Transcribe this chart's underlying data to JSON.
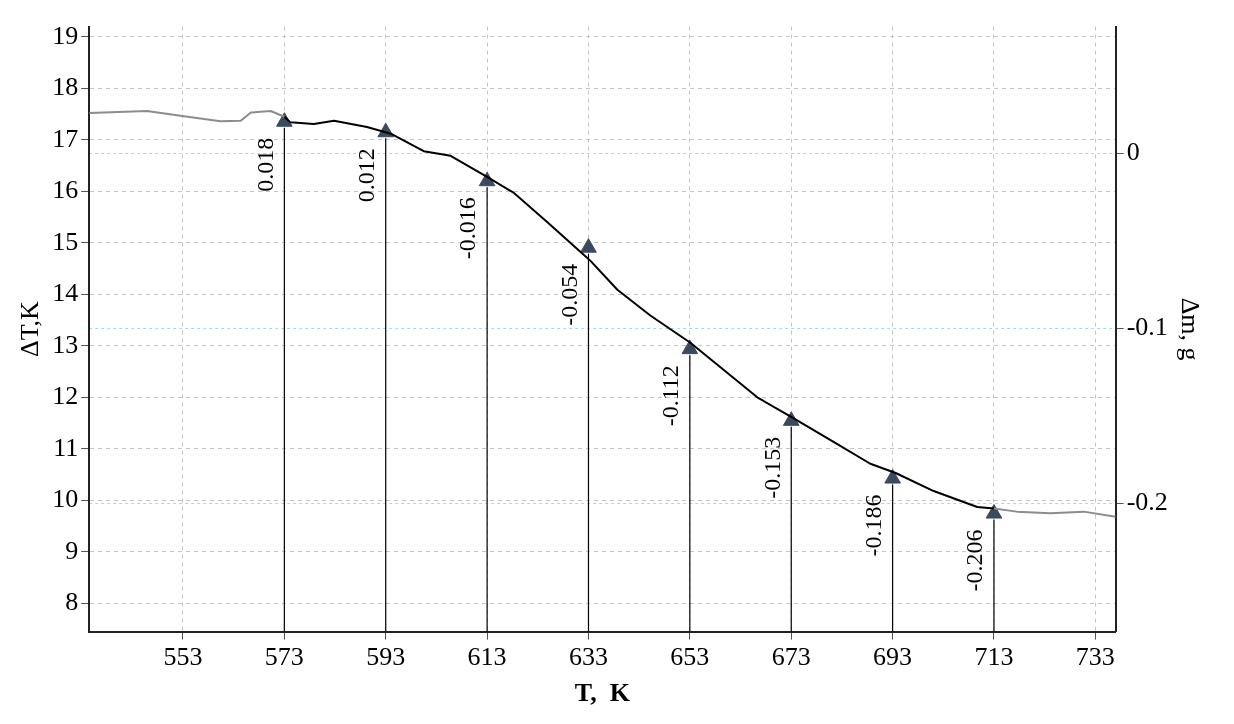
{
  "chart_data": {
    "type": "line",
    "xlabel": "T,  K",
    "ylabel": "ΔT,K",
    "y2label": "Δm, g",
    "xlim": [
      534.5,
      737
    ],
    "xticks": [
      553,
      573,
      593,
      613,
      633,
      653,
      673,
      693,
      713,
      733
    ],
    "ylim": [
      7.45,
      19.2
    ],
    "yticks": [
      8,
      9,
      10,
      11,
      12,
      13,
      14,
      15,
      16,
      17,
      18,
      19
    ],
    "y2lim": [
      -0.2735,
      0.0724
    ],
    "y2ticks": [
      -0.2,
      -0.1,
      0
    ],
    "grid": true,
    "legend": false,
    "series": [
      {
        "type": "line",
        "color": "#8c8c8c",
        "x": [
          534.5,
          545.9,
          552.5,
          560.4,
          564.4,
          566.4,
          570.3,
          573
        ],
        "values": [
          17.52,
          17.56,
          17.47,
          17.36,
          17.37,
          17.53,
          17.56,
          17.45
        ]
      },
      {
        "type": "line",
        "color": "#000000",
        "x": [
          573,
          574.2,
          578.8,
          582.8,
          589.3,
          594,
          600.5,
          605.8,
          613,
          618.3,
          624.9,
          633.4,
          638.7,
          645.2,
          653.1,
          659.7,
          666.3,
          673.5,
          682.1,
          688.6,
          693.6,
          701.1,
          709.7,
          713
        ],
        "values": [
          17.45,
          17.34,
          17.31,
          17.37,
          17.25,
          17.12,
          16.78,
          16.69,
          16.28,
          15.97,
          15.4,
          14.65,
          14.09,
          13.59,
          13.06,
          12.53,
          12.0,
          11.59,
          11.09,
          10.71,
          10.53,
          10.18,
          9.87,
          9.84
        ]
      },
      {
        "type": "line",
        "color": "#8c8c8c",
        "x": [
          713,
          717.5,
          724.1,
          730.7,
          737
        ],
        "values": [
          9.84,
          9.78,
          9.75,
          9.78,
          9.68
        ]
      },
      {
        "type": "lollipop",
        "axis": "y2",
        "marker": "triangle",
        "color": "#3b4a5f",
        "data_labels": true,
        "x": [
          573,
          593,
          613,
          633,
          653,
          673,
          693,
          713
        ],
        "values": [
          0.018,
          0.012,
          -0.016,
          -0.054,
          -0.112,
          -0.153,
          -0.186,
          -0.206
        ]
      }
    ]
  }
}
